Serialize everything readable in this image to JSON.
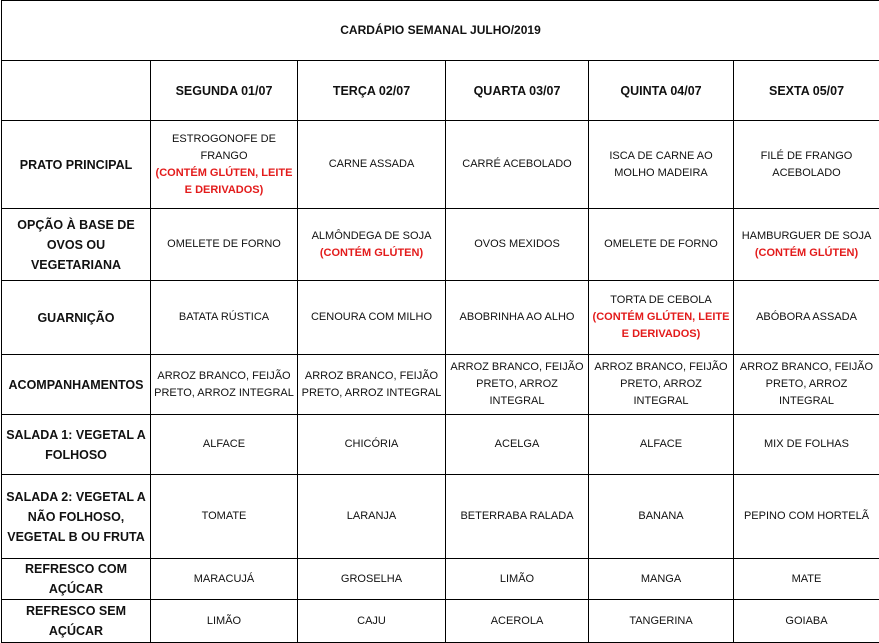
{
  "title": "CARDÁPIO SEMANAL JULHO/2019",
  "colors": {
    "warning": "#e31b1b",
    "border": "#000000"
  },
  "days": [
    "SEGUNDA 01/07",
    "TERÇA 02/07",
    "QUARTA 03/07",
    "QUINTA 04/07",
    "SEXTA 05/07"
  ],
  "rows": [
    {
      "label": "PRATO PRINCIPAL",
      "cells": [
        {
          "text": "ESTROGONOFE DE FRANGO",
          "warn": "(CONTÉM GLÚTEN, LEITE E DERIVADOS)"
        },
        {
          "text": "CARNE ASSADA"
        },
        {
          "text": "CARRÉ ACEBOLADO"
        },
        {
          "text": "ISCA DE CARNE AO MOLHO MADEIRA"
        },
        {
          "text": "FILÉ DE FRANGO ACEBOLADO"
        }
      ]
    },
    {
      "label": "OPÇÃO À BASE DE OVOS OU VEGETARIANA",
      "cells": [
        {
          "text": "OMELETE DE FORNO"
        },
        {
          "text": "ALMÔNDEGA DE SOJA",
          "warn": "(CONTÉM GLÚTEN)"
        },
        {
          "text": "OVOS MEXIDOS"
        },
        {
          "text": "OMELETE DE FORNO"
        },
        {
          "text": "HAMBURGUER DE SOJA",
          "warn": "(CONTÉM GLÚTEN)"
        }
      ]
    },
    {
      "label": "GUARNIÇÃO",
      "cells": [
        {
          "text": "BATATA RÚSTICA"
        },
        {
          "text": "CENOURA COM MILHO"
        },
        {
          "text": "ABOBRINHA AO ALHO"
        },
        {
          "text": "TORTA DE CEBOLA",
          "warn": "(CONTÉM GLÚTEN, LEITE E DERIVADOS)"
        },
        {
          "text": "ABÓBORA ASSADA"
        }
      ]
    },
    {
      "label": "ACOMPANHAMENTOS",
      "cells": [
        {
          "text": "ARROZ BRANCO, FEIJÃO PRETO, ARROZ INTEGRAL"
        },
        {
          "text": "ARROZ BRANCO, FEIJÃO PRETO, ARROZ INTEGRAL"
        },
        {
          "text": "ARROZ BRANCO, FEIJÃO PRETO, ARROZ INTEGRAL"
        },
        {
          "text": "ARROZ BRANCO, FEIJÃO PRETO, ARROZ INTEGRAL"
        },
        {
          "text": "ARROZ BRANCO, FEIJÃO PRETO, ARROZ INTEGRAL"
        }
      ]
    },
    {
      "label": "SALADA 1: VEGETAL A FOLHOSO",
      "cells": [
        {
          "text": "ALFACE"
        },
        {
          "text": "CHICÓRIA"
        },
        {
          "text": "ACELGA"
        },
        {
          "text": "ALFACE"
        },
        {
          "text": "MIX DE FOLHAS"
        }
      ]
    },
    {
      "label": "SALADA 2: VEGETAL A NÃO FOLHOSO, VEGETAL B OU FRUTA",
      "cells": [
        {
          "text": "TOMATE"
        },
        {
          "text": "LARANJA"
        },
        {
          "text": "BETERRABA RALADA"
        },
        {
          "text": "BANANA"
        },
        {
          "text": "PEPINO COM HORTELÃ"
        }
      ]
    },
    {
      "label": "REFRESCO COM AÇÚCAR",
      "cells": [
        {
          "text": "MARACUJÁ"
        },
        {
          "text": "GROSELHA"
        },
        {
          "text": "LIMÃO"
        },
        {
          "text": "MANGA"
        },
        {
          "text": "MATE"
        }
      ]
    },
    {
      "label": "REFRESCO SEM AÇÚCAR",
      "cells": [
        {
          "text": "LIMÃO"
        },
        {
          "text": "CAJU"
        },
        {
          "text": "ACEROLA"
        },
        {
          "text": "TANGERINA"
        },
        {
          "text": "GOIABA"
        }
      ]
    }
  ]
}
